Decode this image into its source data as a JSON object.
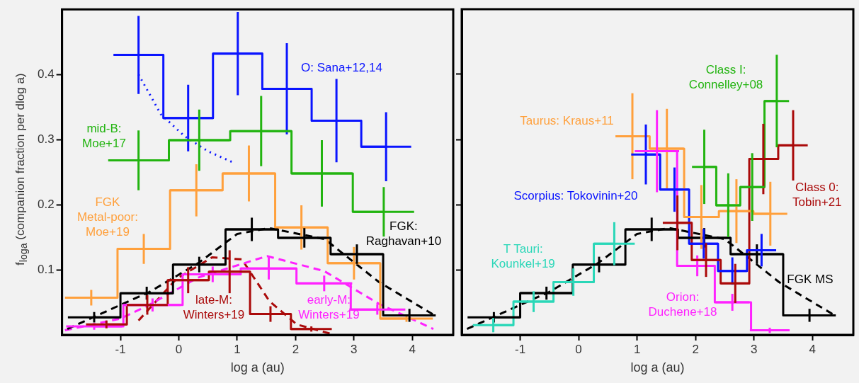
{
  "chart_data": [
    {
      "type": "step",
      "xlabel": "log a (au)",
      "ylabel": "f$_{loga}$ (companion fraction per dlog a)",
      "xlim": [
        -2,
        4.7
      ],
      "xticks": [
        -1,
        0,
        1,
        2,
        3,
        4
      ],
      "ylim": [
        0,
        0.5
      ],
      "yticks": [
        0.1,
        0.2,
        0.3,
        0.4
      ],
      "series": [
        {
          "name": "O: Sana+12,14",
          "color": "#0a14ff",
          "x": [
            -0.69,
            0.16,
            1.01,
            1.85,
            2.7,
            3.55
          ],
          "values": [
            0.43,
            0.333,
            0.432,
            0.378,
            0.329,
            0.289
          ],
          "errors": [
            0.06,
            0.051,
            0.064,
            0.07,
            0.064,
            0.053
          ],
          "xerrors": [
            0.43,
            0.43,
            0.43,
            0.43,
            0.43,
            0.43
          ]
        },
        {
          "name": "mid-B: Moe+17",
          "color": "#22b410",
          "x": [
            -0.69,
            0.35,
            1.41,
            2.45,
            3.51
          ],
          "values": [
            0.268,
            0.299,
            0.313,
            0.248,
            0.189
          ],
          "errors": [
            0.046,
            0.047,
            0.054,
            0.051,
            0.038
          ],
          "xerrors": [
            0.52,
            0.52,
            0.52,
            0.52,
            0.52
          ]
        },
        {
          "name": "FGK Metal-poor: Moe+19",
          "color": "#ffa03c",
          "x": [
            -1.5,
            -0.6,
            0.3,
            1.2,
            2.1,
            3.0,
            3.9
          ],
          "values": [
            0.057,
            0.132,
            0.222,
            0.248,
            0.165,
            0.11,
            0.025
          ],
          "errors": [
            0.012,
            0.023,
            0.04,
            0.043,
            0.034,
            0.025,
            0.005
          ],
          "xerrors": [
            0.45,
            0.45,
            0.45,
            0.45,
            0.45,
            0.45,
            0.45
          ]
        },
        {
          "name": "FGK: Raghavan+10",
          "color": "#000000",
          "x": [
            -1.45,
            -0.55,
            0.35,
            1.25,
            2.15,
            3.05,
            3.95
          ],
          "values": [
            0.027,
            0.064,
            0.108,
            0.162,
            0.149,
            0.124,
            0.03
          ],
          "errors": [
            0.008,
            0.01,
            0.012,
            0.018,
            0.015,
            0.015,
            0.01
          ],
          "xerrors": [
            0.45,
            0.45,
            0.45,
            0.45,
            0.45,
            0.45,
            0.45
          ]
        },
        {
          "name": "early-M: Winters+19",
          "color": "#ff22ff",
          "x": [
            -1.45,
            -0.45,
            0.58,
            1.54,
            2.49,
            3.4
          ],
          "values": [
            0.013,
            0.046,
            0.093,
            0.102,
            0.079,
            0.039
          ],
          "errors": [
            0.005,
            0.01,
            0.012,
            0.017,
            0.012,
            0.008
          ],
          "xerrors": [
            0.48,
            0.48,
            0.48,
            0.48,
            0.48,
            0.48
          ]
        },
        {
          "name": "late-M: Winters+19",
          "color": "#aa0a0a",
          "x": [
            -1.24,
            -0.54,
            0.16,
            0.87,
            1.57,
            2.27
          ],
          "values": [
            0.016,
            0.046,
            0.084,
            0.097,
            0.032,
            0.009
          ],
          "errors": [
            0.006,
            0.015,
            0.02,
            0.033,
            0.012,
            0.004
          ],
          "xerrors": [
            0.35,
            0.35,
            0.35,
            0.35,
            0.35,
            0.35
          ]
        },
        {
          "type": "line",
          "line_style": "dotted",
          "color": "#0a14ff",
          "x": [
            -0.69,
            -0.31,
            0.1,
            0.5,
            0.95
          ],
          "values": [
            0.4,
            0.339,
            0.305,
            0.282,
            0.264
          ]
        },
        {
          "type": "line",
          "line_style": "dashed",
          "color": "#000000",
          "x": [
            -1.91,
            -1.0,
            -0.5,
            0.33,
            1.0,
            1.55,
            2.5,
            3.43,
            4.38
          ],
          "values": [
            0.009,
            0.046,
            0.066,
            0.11,
            0.155,
            0.164,
            0.147,
            0.081,
            0.03
          ]
        },
        {
          "type": "line",
          "line_style": "dashed",
          "color": "#ff22ff",
          "x": [
            -1.95,
            -1.0,
            -0.55,
            0.33,
            1.51,
            2.49,
            3.42,
            4.36
          ],
          "values": [
            0.007,
            0.025,
            0.044,
            0.088,
            0.121,
            0.098,
            0.048,
            0.009
          ]
        },
        {
          "type": "line",
          "line_style": "dashed",
          "color": "#aa0a0a",
          "x": [
            -0.69,
            -0.04,
            0.57,
            1.08,
            1.55,
            2.02,
            2.63
          ],
          "values": [
            0.022,
            0.086,
            0.119,
            0.116,
            0.052,
            0.016,
            0.001
          ]
        }
      ]
    },
    {
      "type": "step",
      "xlabel": "log a (au)",
      "xlim": [
        -2,
        4.7
      ],
      "xticks": [
        -1,
        0,
        1,
        2,
        3,
        4
      ],
      "ylim": [
        0,
        0.5
      ],
      "yticks": [
        0.1,
        0.2,
        0.3,
        0.4
      ],
      "tick_labels": "x",
      "series": [
        {
          "name": "FGK MS",
          "color": "#000000",
          "x": [
            -1.45,
            -0.55,
            0.35,
            1.25,
            2.15,
            3.05,
            3.95
          ],
          "values": [
            0.027,
            0.064,
            0.108,
            0.162,
            0.149,
            0.124,
            0.03
          ],
          "errors": [
            0.008,
            0.01,
            0.012,
            0.018,
            0.015,
            0.015,
            0.01
          ],
          "xerrors": [
            0.45,
            0.45,
            0.45,
            0.45,
            0.45,
            0.45,
            0.45
          ]
        },
        {
          "name": "T Tauri: Kounkel+19",
          "color": "#2ad7b8",
          "x": [
            -1.46,
            -0.77,
            -0.09,
            0.61
          ],
          "values": [
            0.015,
            0.051,
            0.081,
            0.14
          ],
          "errors": [
            0.011,
            0.016,
            0.021,
            0.033
          ],
          "xerrors": [
            0.35,
            0.35,
            0.35,
            0.35
          ]
        },
        {
          "name": "Taurus: Kraus+11",
          "color": "#ffa03c",
          "x": [
            0.92,
            1.51,
            2.1,
            2.7,
            3.28
          ],
          "values": [
            0.305,
            0.286,
            0.181,
            0.19,
            0.186
          ],
          "errors": [
            0.066,
            0.061,
            0.049,
            0.049,
            0.049
          ],
          "xerrors": [
            0.29,
            0.29,
            0.29,
            0.29,
            0.29
          ]
        },
        {
          "name": "Scorpius: Tokovinin+20",
          "color": "#0a14ff",
          "x": [
            1.15,
            1.64,
            2.14,
            2.63,
            3.13
          ],
          "values": [
            0.277,
            0.223,
            0.14,
            0.098,
            0.13
          ],
          "errors": [
            0.046,
            0.034,
            0.023,
            0.021,
            0.025
          ],
          "xerrors": [
            0.25,
            0.25,
            0.25,
            0.25,
            0.25
          ]
        },
        {
          "name": "Orion: Duchene+18",
          "color": "#ff22ff",
          "x": [
            1.34,
            2.03,
            2.63,
            3.27
          ],
          "values": [
            0.282,
            0.106,
            0.05,
            0.007
          ],
          "errors": [
            0.063,
            0.016,
            0.013,
            0.004
          ],
          "xerrors": [
            0.38,
            0.31,
            0.29,
            0.34
          ]
        },
        {
          "name": "Class 0: Tobin+21",
          "color": "#aa0a0a",
          "x": [
            1.69,
            2.18,
            2.68,
            3.16,
            3.67
          ],
          "values": [
            0.172,
            0.115,
            0.079,
            0.27,
            0.291
          ],
          "errors": [
            0.042,
            0.026,
            0.03,
            0.054,
            0.054
          ],
          "xerrors": [
            0.25,
            0.25,
            0.25,
            0.25,
            0.25
          ]
        },
        {
          "name": "Class I: Connelley+08",
          "color": "#22b410",
          "x": [
            2.15,
            2.56,
            2.97,
            3.39
          ],
          "values": [
            0.258,
            0.199,
            0.227,
            0.359
          ],
          "errors": [
            0.057,
            0.049,
            0.052,
            0.071
          ],
          "xerrors": [
            0.21,
            0.21,
            0.21,
            0.21
          ]
        },
        {
          "type": "line",
          "line_style": "dashed",
          "color": "#000000",
          "x": [
            -1.91,
            -1.0,
            -0.5,
            0.33,
            1.0,
            1.55,
            2.5,
            3.43,
            4.38
          ],
          "values": [
            0.009,
            0.046,
            0.066,
            0.11,
            0.155,
            0.164,
            0.147,
            0.081,
            0.03
          ]
        }
      ]
    }
  ]
}
